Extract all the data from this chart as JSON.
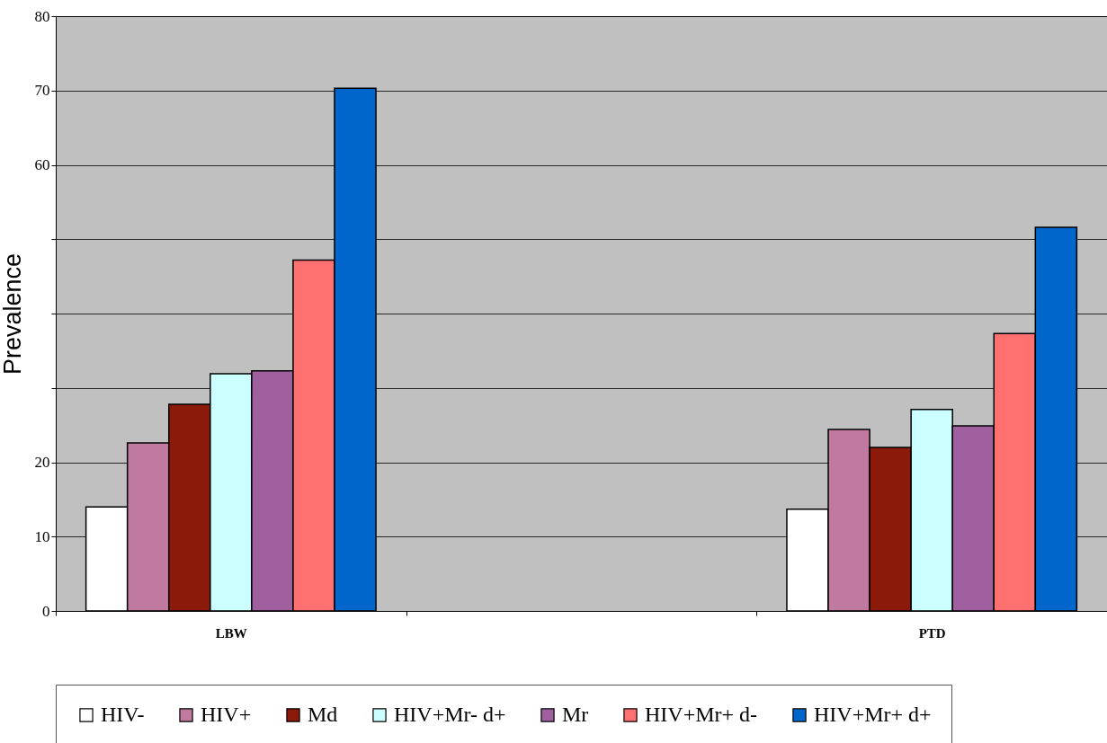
{
  "chart_data": {
    "type": "bar",
    "ylabel": "Prevalence",
    "categories": [
      "LBW",
      null,
      "PTD"
    ],
    "series": [
      {
        "name": "HIV-",
        "color": "#ffffff",
        "values": [
          14.0,
          null,
          13.7
        ]
      },
      {
        "name": "HIV+",
        "color": "#c07aa0",
        "values": [
          22.6,
          null,
          24.4
        ]
      },
      {
        "name": "Md",
        "color": "#8b1a0a",
        "values": [
          27.8,
          null,
          22.0
        ]
      },
      {
        "name": "HIV+Mr- d+",
        "color": "#ccffff",
        "values": [
          31.9,
          null,
          27.1
        ]
      },
      {
        "name": "Mr",
        "color": "#a060a0",
        "values": [
          32.3,
          null,
          24.9
        ]
      },
      {
        "name": "HIV+Mr+ d-",
        "color": "#ff7070",
        "values": [
          47.2,
          null,
          37.3
        ]
      },
      {
        "name": "HIV+Mr+ d+",
        "color": "#0066cc",
        "values": [
          70.3,
          null,
          51.6
        ]
      }
    ],
    "ylim": [
      0,
      80
    ],
    "yticks": [
      0,
      10,
      20,
      {
        "value": 30,
        "label": null
      },
      {
        "value": 40,
        "label": null
      },
      {
        "value": 50,
        "label": null
      },
      60,
      70,
      80
    ],
    "grid": "y",
    "legend": "bottom"
  }
}
